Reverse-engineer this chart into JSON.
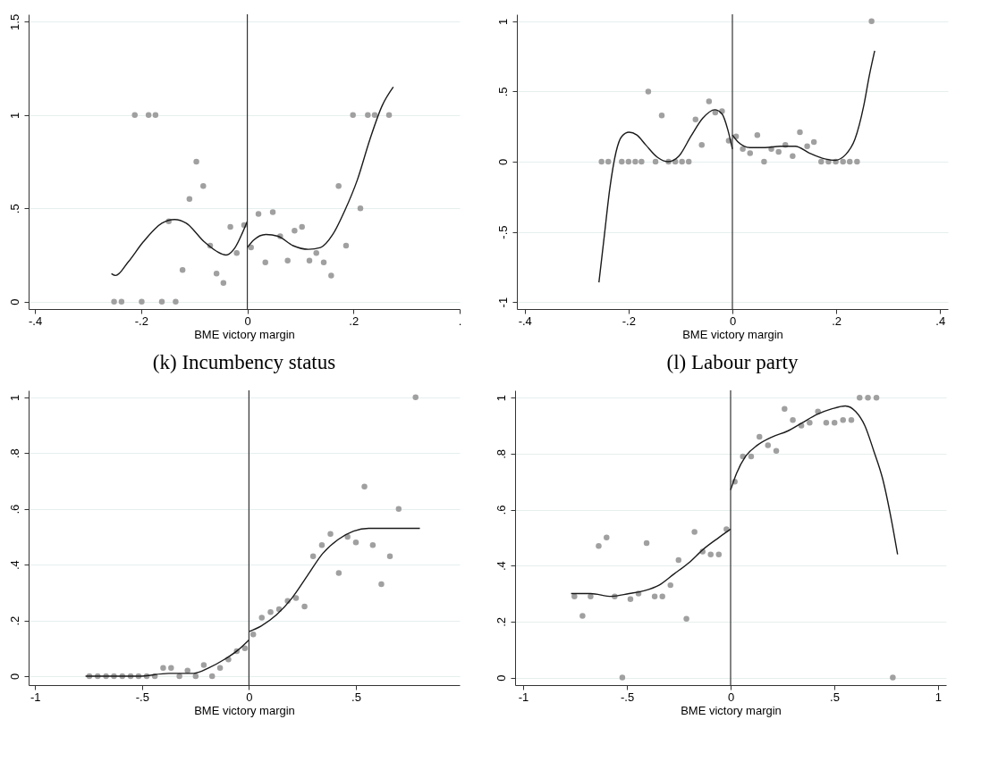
{
  "chart_data": [
    {
      "type": "scatter",
      "title": "(k) Incumbency status",
      "xlabel": "BME victory margin",
      "xlim": [
        -0.412,
        0.4
      ],
      "xticks": [
        {
          "value": -0.4,
          "label": "-.4"
        },
        {
          "value": -0.2,
          "label": "-.2"
        },
        0,
        {
          "value": 0.2,
          "label": ".2"
        },
        {
          "value": 0.4,
          "label": "."
        }
      ],
      "ylim": [
        -0.04,
        1.54
      ],
      "yticks": [
        0,
        {
          "value": 0.5,
          "label": ".5"
        },
        1,
        1.5
      ],
      "grid": "y",
      "ref_lines": [
        {
          "axis": "x",
          "value": 0,
          "color": "#333333"
        }
      ],
      "series": [
        {
          "marker": "circle",
          "color": "#a0a0a0",
          "x": [
            -0.251,
            -0.237,
            -0.199,
            -0.161,
            -0.135,
            -0.212,
            -0.186,
            -0.173,
            -0.148,
            -0.122,
            -0.109,
            -0.096,
            -0.083,
            -0.07,
            -0.058,
            -0.045,
            -0.032,
            -0.02,
            -0.006,
            0.007,
            0.021,
            0.034,
            0.048,
            0.062,
            0.076,
            0.089,
            0.103,
            0.117,
            0.13,
            0.144,
            0.158,
            0.172,
            0.186,
            0.199,
            0.213,
            0.227,
            0.24,
            0.267
          ],
          "values": [
            0,
            0,
            0,
            0,
            0,
            1,
            1,
            1,
            0.43,
            0.17,
            0.55,
            0.75,
            0.62,
            0.3,
            0.15,
            0.1,
            0.4,
            0.26,
            0.41,
            0.29,
            0.47,
            0.21,
            0.48,
            0.35,
            0.22,
            0.38,
            0.4,
            0.22,
            0.26,
            0.21,
            0.14,
            0.62,
            0.3,
            1,
            0.5,
            1,
            1,
            1
          ]
        },
        {
          "type": "line",
          "color": "#1a1a1a",
          "x": [
            -0.256,
            -0.248,
            -0.225,
            -0.196,
            -0.161,
            -0.137,
            -0.115,
            -0.081,
            -0.058,
            -0.04,
            -0.023,
            -0.009,
            0
          ],
          "values": [
            0.15,
            0.14,
            0.21,
            0.32,
            0.42,
            0.44,
            0.42,
            0.32,
            0.27,
            0.25,
            0.29,
            0.37,
            0.43
          ]
        },
        {
          "type": "line",
          "color": "#1a1a1a",
          "x": [
            0,
            0.012,
            0.035,
            0.058,
            0.086,
            0.115,
            0.138,
            0.161,
            0.184,
            0.207,
            0.231,
            0.254,
            0.275
          ],
          "values": [
            0.29,
            0.33,
            0.36,
            0.35,
            0.3,
            0.28,
            0.29,
            0.36,
            0.49,
            0.65,
            0.87,
            1.05,
            1.15
          ]
        }
      ]
    },
    {
      "type": "scatter",
      "title": "(l) Labour party",
      "xlabel": "BME victory margin",
      "xlim": [
        -0.415,
        0.415
      ],
      "xticks": [
        {
          "value": -0.4,
          "label": "-.4"
        },
        {
          "value": -0.2,
          "label": "-.2"
        },
        0,
        {
          "value": 0.2,
          "label": ".2"
        },
        {
          "value": 0.4,
          "label": ".4"
        }
      ],
      "ylim": [
        -1.05,
        1.05
      ],
      "yticks": [
        -1,
        {
          "value": -0.5,
          "label": "-.5"
        },
        0,
        {
          "value": 0.5,
          "label": ".5"
        },
        1
      ],
      "grid": "y",
      "ref_lines": [
        {
          "axis": "x",
          "value": 0,
          "color": "#333333"
        }
      ],
      "series": [
        {
          "marker": "circle",
          "color": "#a0a0a0",
          "x": [
            -0.252,
            -0.239,
            -0.213,
            -0.2,
            -0.187,
            -0.175,
            -0.148,
            -0.123,
            -0.11,
            -0.097,
            -0.084,
            -0.162,
            -0.136,
            -0.071,
            -0.059,
            -0.045,
            -0.033,
            -0.02,
            -0.007,
            0.007,
            0.02,
            0.034,
            0.048,
            0.061,
            0.075,
            0.089,
            0.102,
            0.116,
            0.13,
            0.144,
            0.157,
            0.171,
            0.185,
            0.199,
            0.213,
            0.226,
            0.24,
            0.268
          ],
          "values": [
            0,
            0,
            0,
            0,
            0,
            0,
            0,
            0,
            0,
            0,
            0,
            0.5,
            0.33,
            0.3,
            0.12,
            0.43,
            0.35,
            0.36,
            0.15,
            0.18,
            0.09,
            0.06,
            0.19,
            0,
            0.09,
            0.07,
            0.12,
            0.04,
            0.21,
            0.11,
            0.14,
            0,
            0,
            0,
            0,
            0,
            0,
            1
          ]
        },
        {
          "type": "line",
          "color": "#1a1a1a",
          "x": [
            -0.257,
            -0.247,
            -0.236,
            -0.224,
            -0.213,
            -0.199,
            -0.184,
            -0.167,
            -0.144,
            -0.124,
            -0.103,
            -0.08,
            -0.057,
            -0.034,
            -0.02,
            -0.009,
            0
          ],
          "values": [
            -0.86,
            -0.54,
            -0.19,
            0.07,
            0.18,
            0.21,
            0.19,
            0.12,
            0.03,
            0,
            0.04,
            0.18,
            0.31,
            0.37,
            0.34,
            0.23,
            0.09
          ]
        },
        {
          "type": "line",
          "color": "#1a1a1a",
          "x": [
            0,
            0.011,
            0.034,
            0.063,
            0.092,
            0.121,
            0.149,
            0.178,
            0.198,
            0.218,
            0.236,
            0.253,
            0.264,
            0.274
          ],
          "values": [
            0.19,
            0.14,
            0.1,
            0.1,
            0.11,
            0.11,
            0.06,
            0.02,
            0.01,
            0.05,
            0.16,
            0.4,
            0.62,
            0.79
          ]
        }
      ]
    },
    {
      "type": "scatter",
      "xlabel": "BME victory margin",
      "xlim": [
        -1.03,
        0.985
      ],
      "xticks": [
        -1,
        {
          "value": -0.5,
          "label": "-.5"
        },
        0,
        {
          "value": 0.5,
          "label": ".5"
        }
      ],
      "ylim": [
        -0.032,
        1.025
      ],
      "yticks": [
        0,
        {
          "value": 0.2,
          "label": ".2"
        },
        {
          "value": 0.4,
          "label": ".4"
        },
        {
          "value": 0.6,
          "label": ".6"
        },
        {
          "value": 0.8,
          "label": ".8"
        },
        1
      ],
      "grid": "y",
      "ref_lines": [
        {
          "axis": "x",
          "value": 0,
          "color": "#333333"
        }
      ],
      "series": [
        {
          "marker": "circle",
          "color": "#a0a0a0",
          "x": [
            -0.746,
            -0.707,
            -0.668,
            -0.631,
            -0.592,
            -0.553,
            -0.516,
            -0.478,
            -0.44,
            -0.401,
            -0.364,
            -0.325,
            -0.287,
            -0.249,
            -0.211,
            -0.172,
            -0.135,
            -0.096,
            -0.057,
            -0.019,
            0.02,
            0.06,
            0.101,
            0.141,
            0.181,
            0.22,
            0.26,
            0.3,
            0.341,
            0.381,
            0.42,
            0.461,
            0.5,
            0.54,
            0.579,
            0.619,
            0.659,
            0.7,
            0.779
          ],
          "values": [
            0,
            0,
            0,
            0,
            0,
            0,
            0,
            0,
            0,
            0.03,
            0.03,
            0,
            0.02,
            0,
            0.04,
            0,
            0.03,
            0.06,
            0.09,
            0.1,
            0.15,
            0.21,
            0.23,
            0.24,
            0.27,
            0.28,
            0.25,
            0.43,
            0.47,
            0.51,
            0.37,
            0.5,
            0.48,
            0.68,
            0.47,
            0.33,
            0.43,
            0.6,
            1
          ]
        },
        {
          "type": "line",
          "color": "#1a1a1a",
          "x": [
            -0.764,
            -0.718,
            -0.632,
            -0.517,
            -0.374,
            -0.259,
            -0.187,
            -0.115,
            -0.057,
            0
          ],
          "values": [
            0,
            0,
            0,
            0,
            0.01,
            0.01,
            0.03,
            0.06,
            0.09,
            0.13
          ]
        },
        {
          "type": "line",
          "color": "#1a1a1a",
          "x": [
            0,
            0.057,
            0.129,
            0.201,
            0.273,
            0.345,
            0.417,
            0.489,
            0.56,
            0.632,
            0.704,
            0.799
          ],
          "values": [
            0.16,
            0.18,
            0.22,
            0.28,
            0.36,
            0.44,
            0.49,
            0.52,
            0.53,
            0.53,
            0.53,
            0.53
          ]
        }
      ]
    },
    {
      "type": "scatter",
      "xlabel": "BME victory margin",
      "xlim": [
        -1.039,
        1.039
      ],
      "xticks": [
        -1,
        {
          "value": -0.5,
          "label": "-.5"
        },
        0,
        {
          "value": 0.5,
          "label": ".5"
        },
        1
      ],
      "ylim": [
        -0.027,
        1.026
      ],
      "yticks": [
        0,
        {
          "value": 0.2,
          "label": ".2"
        },
        {
          "value": 0.4,
          "label": ".4"
        },
        {
          "value": 0.6,
          "label": ".6"
        },
        {
          "value": 0.8,
          "label": ".8"
        },
        1
      ],
      "grid": "y",
      "ref_lines": [
        {
          "axis": "x",
          "value": 0,
          "color": "#333333"
        }
      ],
      "series": [
        {
          "marker": "circle",
          "color": "#a0a0a0",
          "x": [
            -0.753,
            -0.714,
            -0.675,
            -0.636,
            -0.598,
            -0.559,
            -0.522,
            -0.483,
            -0.444,
            -0.405,
            -0.366,
            -0.329,
            -0.29,
            -0.251,
            -0.213,
            -0.174,
            -0.135,
            -0.096,
            -0.057,
            -0.02,
            0.02,
            0.059,
            0.099,
            0.139,
            0.18,
            0.22,
            0.26,
            0.3,
            0.341,
            0.381,
            0.421,
            0.461,
            0.501,
            0.542,
            0.582,
            0.622,
            0.662,
            0.703,
            0.782
          ],
          "values": [
            0.29,
            0.22,
            0.29,
            0.47,
            0.5,
            0.29,
            0,
            0.28,
            0.3,
            0.48,
            0.29,
            0.29,
            0.33,
            0.42,
            0.21,
            0.52,
            0.45,
            0.44,
            0.44,
            0.53,
            0.7,
            0.79,
            0.79,
            0.86,
            0.83,
            0.81,
            0.96,
            0.92,
            0.9,
            0.91,
            0.95,
            0.91,
            0.91,
            0.92,
            0.92,
            1,
            1,
            1,
            0
          ]
        },
        {
          "type": "line",
          "color": "#1a1a1a",
          "x": [
            -0.769,
            -0.675,
            -0.575,
            -0.489,
            -0.417,
            -0.345,
            -0.273,
            -0.201,
            -0.129,
            -0.057,
            0
          ],
          "values": [
            0.3,
            0.3,
            0.29,
            0.3,
            0.31,
            0.33,
            0.37,
            0.41,
            0.46,
            0.5,
            0.53
          ]
        },
        {
          "type": "line",
          "color": "#1a1a1a",
          "x": [
            0,
            0.029,
            0.072,
            0.129,
            0.201,
            0.273,
            0.345,
            0.417,
            0.489,
            0.553,
            0.603,
            0.647,
            0.69,
            0.733,
            0.776,
            0.805
          ],
          "values": [
            0.67,
            0.73,
            0.79,
            0.83,
            0.86,
            0.88,
            0.91,
            0.94,
            0.96,
            0.97,
            0.95,
            0.9,
            0.81,
            0.71,
            0.56,
            0.44
          ]
        }
      ]
    }
  ]
}
